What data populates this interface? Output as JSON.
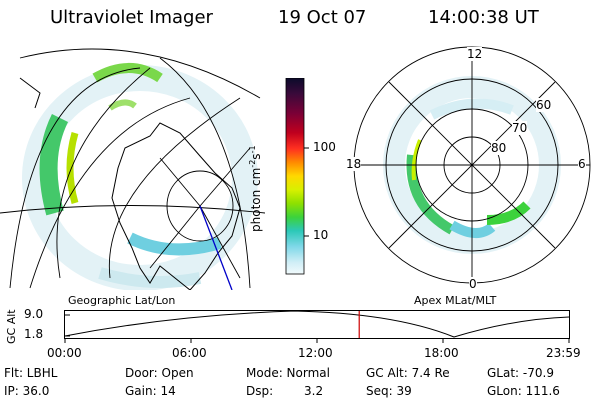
{
  "header": {
    "instrument": "Ultraviolet Imager",
    "date": "19 Oct 07",
    "time": "14:00:38 UT"
  },
  "colorbar": {
    "unit": "photon cm",
    "unit_exp1": "-2",
    "unit_mid": "s",
    "unit_exp2": "-1",
    "ticks": [
      "100",
      "10"
    ],
    "colors": [
      "#0b0b2a",
      "#3a0a3a",
      "#7a0036",
      "#c0001e",
      "#ff3020",
      "#ff8a00",
      "#ffd800",
      "#d8f000",
      "#8ee000",
      "#3cd23c",
      "#2cc8b8",
      "#7fd8e8",
      "#cfeef6",
      "#f2fafc"
    ]
  },
  "left_map": {
    "caption": "Geographic Lat/Lon"
  },
  "right_map": {
    "caption": "Apex MLat/MLT",
    "mlt_labels": {
      "top": "12",
      "bottom": "0",
      "left": "18",
      "right": "6"
    },
    "lat_labels": [
      "60",
      "70",
      "80"
    ]
  },
  "altitude_plot": {
    "ylabel": "GC Alt",
    "yticks": [
      "9.0",
      "1.8"
    ],
    "xticks": [
      "00:00",
      "06:00",
      "12:00",
      "18:00",
      "23:59"
    ],
    "current_marker_hour": 14.01,
    "marker_color": "#cc0000"
  },
  "info": {
    "row1": {
      "flt": "Flt: LBHL",
      "door": "Door: Open",
      "mode": "Mode: Normal",
      "gcalt": "GC Alt: 7.4 Re",
      "glat": "GLat: -70.9"
    },
    "row2": {
      "ip": "IP: 36.0",
      "gain": "Gain: 14",
      "dsp_label": "Dsp:",
      "dsp_value": "3.2",
      "seq": "Seq: 39",
      "glon": "GLon: 111.6"
    }
  }
}
